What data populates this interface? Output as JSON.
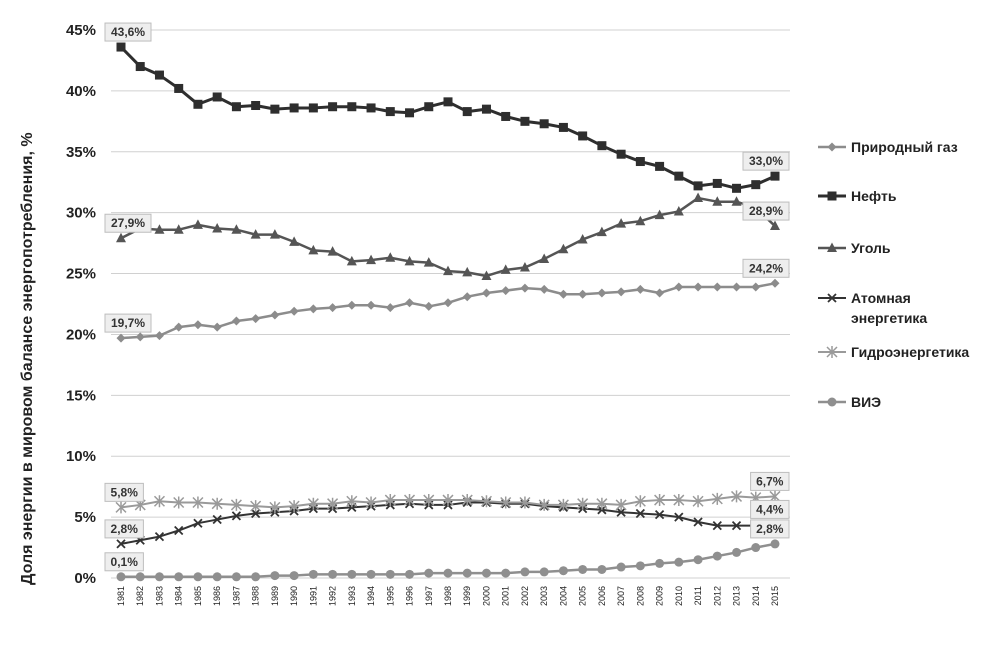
{
  "chart_data": {
    "type": "line",
    "title": "",
    "xlabel": "",
    "ylabel": "Доля энергии в мировом  балансе энергопотребления, %",
    "ylim": [
      0,
      45
    ],
    "yticks": [
      "0%",
      "5%",
      "10%",
      "15%",
      "20%",
      "25%",
      "30%",
      "35%",
      "40%",
      "45%"
    ],
    "grid": true,
    "legend_position": "right",
    "x": [
      "1981",
      "1982",
      "1983",
      "1984",
      "1985",
      "1986",
      "1987",
      "1988",
      "1989",
      "1990",
      "1991",
      "1992",
      "1993",
      "1994",
      "1995",
      "1996",
      "1997",
      "1998",
      "1999",
      "2000",
      "2001",
      "2002",
      "2003",
      "2004",
      "2005",
      "2006",
      "2007",
      "2008",
      "2009",
      "2010",
      "2011",
      "2012",
      "2013",
      "2014",
      "2015"
    ],
    "series": [
      {
        "name": "Природный газ",
        "marker": "diamond",
        "color": "#8c8c8c",
        "width": 2.5,
        "values": [
          19.7,
          19.8,
          19.9,
          20.6,
          20.8,
          20.6,
          21.1,
          21.3,
          21.6,
          21.9,
          22.1,
          22.2,
          22.4,
          22.4,
          22.2,
          22.6,
          22.3,
          22.6,
          23.1,
          23.4,
          23.6,
          23.8,
          23.7,
          23.3,
          23.3,
          23.4,
          23.5,
          23.7,
          23.4,
          23.9,
          23.9,
          23.9,
          23.9,
          23.9,
          24.2
        ]
      },
      {
        "name": "Нефть",
        "marker": "square",
        "color": "#2e2e2e",
        "width": 3,
        "values": [
          43.6,
          42.0,
          41.3,
          40.2,
          38.9,
          39.5,
          38.7,
          38.8,
          38.5,
          38.6,
          38.6,
          38.7,
          38.7,
          38.6,
          38.3,
          38.2,
          38.7,
          39.1,
          38.3,
          38.5,
          37.9,
          37.5,
          37.3,
          37.0,
          36.3,
          35.5,
          34.8,
          34.2,
          33.8,
          33.0,
          32.2,
          32.4,
          32.0,
          32.3,
          33.0
        ]
      },
      {
        "name": "Уголь",
        "marker": "triangle",
        "color": "#555555",
        "width": 2.5,
        "values": [
          27.9,
          28.7,
          28.6,
          28.6,
          29.0,
          28.7,
          28.6,
          28.2,
          28.2,
          27.6,
          26.9,
          26.8,
          26.0,
          26.1,
          26.3,
          26.0,
          25.9,
          25.2,
          25.1,
          24.8,
          25.3,
          25.5,
          26.2,
          27.0,
          27.8,
          28.4,
          29.1,
          29.3,
          29.8,
          30.1,
          31.2,
          30.9,
          30.9,
          30.4,
          28.9
        ]
      },
      {
        "name": "Атомная энергетика",
        "marker": "x",
        "color": "#333333",
        "width": 2,
        "values": [
          2.8,
          3.1,
          3.4,
          3.9,
          4.5,
          4.8,
          5.1,
          5.3,
          5.4,
          5.5,
          5.7,
          5.7,
          5.8,
          5.9,
          6.0,
          6.1,
          6.0,
          6.0,
          6.2,
          6.2,
          6.1,
          6.1,
          5.9,
          5.8,
          5.7,
          5.6,
          5.4,
          5.3,
          5.2,
          5.0,
          4.6,
          4.3,
          4.3,
          4.3,
          4.4
        ]
      },
      {
        "name": "Гидроэнергетика",
        "marker": "star",
        "color": "#9a9a9a",
        "width": 2,
        "values": [
          5.8,
          6.0,
          6.3,
          6.2,
          6.2,
          6.1,
          6.0,
          5.9,
          5.8,
          5.9,
          6.1,
          6.1,
          6.3,
          6.2,
          6.4,
          6.4,
          6.4,
          6.4,
          6.4,
          6.3,
          6.2,
          6.2,
          6.0,
          6.0,
          6.1,
          6.1,
          6.0,
          6.3,
          6.4,
          6.4,
          6.3,
          6.5,
          6.7,
          6.6,
          6.7
        ]
      },
      {
        "name": "ВИЭ",
        "marker": "circle",
        "color": "#8f8f8f",
        "width": 2.5,
        "values": [
          0.1,
          0.1,
          0.1,
          0.1,
          0.1,
          0.1,
          0.1,
          0.1,
          0.2,
          0.2,
          0.3,
          0.3,
          0.3,
          0.3,
          0.3,
          0.3,
          0.4,
          0.4,
          0.4,
          0.4,
          0.4,
          0.5,
          0.5,
          0.6,
          0.7,
          0.7,
          0.9,
          1.0,
          1.2,
          1.3,
          1.5,
          1.8,
          2.1,
          2.5,
          2.8
        ]
      }
    ],
    "annotations": [
      {
        "text": "43,6%",
        "series": 1,
        "index": 0
      },
      {
        "text": "33,0%",
        "series": 1,
        "index": 34
      },
      {
        "text": "27,9%",
        "series": 2,
        "index": 0
      },
      {
        "text": "28,9%",
        "series": 2,
        "index": 34
      },
      {
        "text": "19,7%",
        "series": 0,
        "index": 0
      },
      {
        "text": "24,2%",
        "series": 0,
        "index": 34
      },
      {
        "text": "5,8%",
        "series": 4,
        "index": 0
      },
      {
        "text": "6,7%",
        "series": 4,
        "index": 34
      },
      {
        "text": "2,8%",
        "series": 3,
        "index": 0
      },
      {
        "text": "4,4%",
        "series": 3,
        "index": 34
      },
      {
        "text": "0,1%",
        "series": 5,
        "index": 0
      },
      {
        "text": "2,8%",
        "series": 5,
        "index": 34
      }
    ]
  }
}
